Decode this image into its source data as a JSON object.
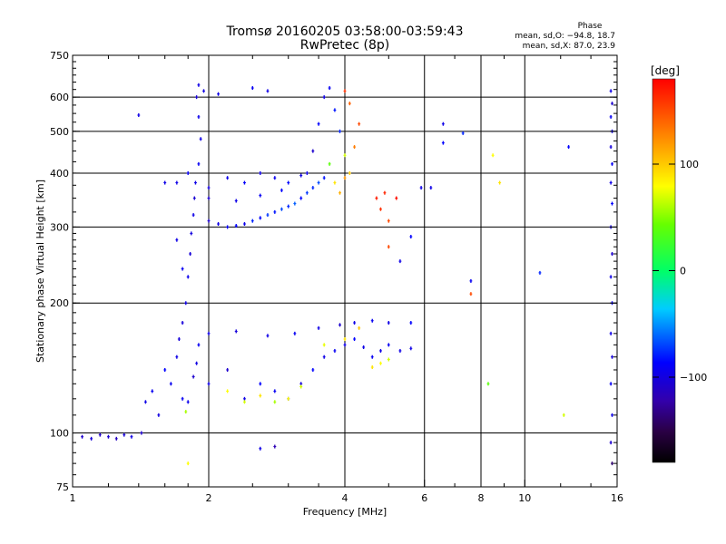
{
  "header": {
    "title_line1": "Tromsø 20160205 03:58:00-03:59:43",
    "title_line2": "RwPretec (8p)",
    "phase_label": "Phase",
    "stats_o": "mean, sd,O: −94.8, 18.7",
    "stats_x": "mean, sd,X:  87.0, 23.9"
  },
  "colorbar": {
    "unit_label": "[deg]",
    "tick_labels": [
      "100",
      "0",
      "−100"
    ],
    "tick_values": [
      100,
      0,
      -100
    ],
    "range": [
      -180,
      180
    ]
  },
  "chart_data": {
    "type": "scatter",
    "title": "Tromsø 20160205 03:58:00-03:59:43",
    "subtitle": "RwPretec (8p)",
    "xlabel": "Frequency [MHz]",
    "ylabel": "Stationary phase Virtual Height [km]",
    "x_scale": "log",
    "y_scale": "log",
    "xlim": [
      1,
      16
    ],
    "ylim": [
      75,
      750
    ],
    "x_ticks": [
      1,
      2,
      4,
      6,
      8,
      10,
      16
    ],
    "x_tick_labels": [
      "1",
      "2",
      "4",
      "6",
      "8",
      "10",
      "16"
    ],
    "y_ticks": [
      75,
      100,
      200,
      300,
      400,
      500,
      600,
      750
    ],
    "y_tick_labels": [
      "75",
      "100",
      "200",
      "300",
      "400",
      "500",
      "600",
      "750"
    ],
    "x_grid": [
      2,
      4,
      6,
      8,
      10
    ],
    "y_grid": [
      100,
      200,
      300,
      400,
      500,
      600
    ],
    "series": [
      {
        "values": [
          [
            1.05,
            98,
            -110
          ],
          [
            1.1,
            97,
            -105
          ],
          [
            1.15,
            99,
            -112
          ],
          [
            1.2,
            98,
            -108
          ],
          [
            1.25,
            97,
            -115
          ],
          [
            1.3,
            99,
            -106
          ],
          [
            1.35,
            98,
            -100
          ],
          [
            1.42,
            100,
            -110
          ],
          [
            1.45,
            118,
            -100
          ],
          [
            1.5,
            125,
            -95
          ],
          [
            1.55,
            110,
            -102
          ],
          [
            1.6,
            140,
            -90
          ],
          [
            1.65,
            130,
            -96
          ],
          [
            1.7,
            150,
            -100
          ],
          [
            1.72,
            165,
            -105
          ],
          [
            1.75,
            120,
            -95
          ],
          [
            1.78,
            112,
            60
          ],
          [
            1.8,
            118,
            -98
          ],
          [
            1.85,
            135,
            -110
          ],
          [
            1.88,
            145,
            -102
          ],
          [
            1.9,
            160,
            -95
          ],
          [
            1.75,
            180,
            -105
          ],
          [
            1.78,
            200,
            -100
          ],
          [
            1.8,
            230,
            -98
          ],
          [
            1.82,
            260,
            -106
          ],
          [
            1.83,
            290,
            -103
          ],
          [
            1.85,
            320,
            -100
          ],
          [
            1.86,
            350,
            -108
          ],
          [
            1.87,
            380,
            -100
          ],
          [
            1.9,
            420,
            -95
          ],
          [
            1.92,
            480,
            -100
          ],
          [
            1.9,
            540,
            -98
          ],
          [
            1.88,
            600,
            -106
          ],
          [
            1.9,
            640,
            -100
          ],
          [
            1.95,
            620,
            -102
          ],
          [
            2.0,
            310,
            -110
          ],
          [
            2.1,
            305,
            -100
          ],
          [
            2.2,
            300,
            -95
          ],
          [
            2.3,
            302,
            -90
          ],
          [
            2.4,
            305,
            -98
          ],
          [
            2.5,
            310,
            -80
          ],
          [
            2.6,
            315,
            -90
          ],
          [
            2.7,
            320,
            -75
          ],
          [
            2.8,
            325,
            -85
          ],
          [
            2.9,
            330,
            -70
          ],
          [
            3.0,
            335,
            -80
          ],
          [
            3.1,
            340,
            -65
          ],
          [
            3.2,
            350,
            -90
          ],
          [
            3.3,
            360,
            -75
          ],
          [
            3.4,
            370,
            -80
          ],
          [
            3.5,
            380,
            -70
          ],
          [
            3.6,
            390,
            -85
          ],
          [
            1.7,
            380,
            -100
          ],
          [
            1.8,
            400,
            -95
          ],
          [
            2.0,
            370,
            -105
          ],
          [
            2.2,
            390,
            -98
          ],
          [
            2.4,
            380,
            -92
          ],
          [
            2.6,
            400,
            -100
          ],
          [
            2.8,
            390,
            -96
          ],
          [
            3.0,
            380,
            -88
          ],
          [
            3.2,
            395,
            -102
          ],
          [
            2.0,
            350,
            -110
          ],
          [
            2.3,
            345,
            -100
          ],
          [
            2.6,
            355,
            -95
          ],
          [
            2.9,
            365,
            -90
          ],
          [
            3.3,
            400,
            -100
          ],
          [
            3.4,
            450,
            -110
          ],
          [
            3.5,
            520,
            -90
          ],
          [
            3.6,
            600,
            -100
          ],
          [
            3.7,
            630,
            -95
          ],
          [
            3.8,
            560,
            -85
          ],
          [
            3.9,
            500,
            -80
          ],
          [
            4.0,
            440,
            70
          ],
          [
            4.1,
            400,
            100
          ],
          [
            4.2,
            460,
            130
          ],
          [
            4.3,
            520,
            150
          ],
          [
            4.1,
            580,
            140
          ],
          [
            4.0,
            620,
            160
          ],
          [
            3.7,
            420,
            40
          ],
          [
            3.8,
            380,
            90
          ],
          [
            3.9,
            360,
            110
          ],
          [
            4.0,
            390,
            120
          ],
          [
            2.0,
            130,
            -100
          ],
          [
            2.2,
            140,
            -110
          ],
          [
            2.4,
            120,
            -100
          ],
          [
            2.6,
            130,
            -90
          ],
          [
            2.8,
            125,
            -95
          ],
          [
            3.0,
            120,
            -100
          ],
          [
            3.2,
            130,
            -105
          ],
          [
            3.4,
            140,
            -90
          ],
          [
            3.6,
            150,
            -100
          ],
          [
            3.8,
            155,
            -95
          ],
          [
            4.0,
            160,
            -100
          ],
          [
            4.2,
            165,
            -90
          ],
          [
            4.4,
            158,
            -100
          ],
          [
            4.6,
            150,
            -95
          ],
          [
            4.8,
            155,
            -100
          ],
          [
            5.0,
            160,
            -95
          ],
          [
            5.3,
            155,
            -100
          ],
          [
            5.6,
            157,
            -100
          ],
          [
            2.2,
            125,
            80
          ],
          [
            2.4,
            118,
            70
          ],
          [
            2.6,
            122,
            90
          ],
          [
            2.8,
            118,
            60
          ],
          [
            3.0,
            120,
            80
          ],
          [
            3.2,
            128,
            70
          ],
          [
            3.6,
            160,
            75
          ],
          [
            4.0,
            165,
            90
          ],
          [
            4.3,
            175,
            100
          ],
          [
            4.6,
            142,
            90
          ],
          [
            4.8,
            145,
            80
          ],
          [
            5.0,
            148,
            70
          ],
          [
            2.0,
            170,
            -100
          ],
          [
            2.3,
            172,
            -105
          ],
          [
            2.7,
            168,
            -100
          ],
          [
            3.1,
            170,
            -95
          ],
          [
            3.5,
            175,
            -100
          ],
          [
            3.9,
            178,
            -110
          ],
          [
            4.2,
            180,
            -100
          ],
          [
            4.6,
            182,
            -95
          ],
          [
            5.0,
            180,
            -100
          ],
          [
            5.6,
            180,
            -90
          ],
          [
            4.7,
            350,
            170
          ],
          [
            4.8,
            330,
            160
          ],
          [
            5.0,
            310,
            150
          ],
          [
            4.9,
            360,
            165
          ],
          [
            5.2,
            350,
            175
          ],
          [
            5.0,
            270,
            150
          ],
          [
            5.3,
            250,
            -100
          ],
          [
            5.6,
            285,
            -90
          ],
          [
            5.9,
            370,
            -100
          ],
          [
            6.6,
            520,
            -100
          ],
          [
            6.6,
            470,
            -90
          ],
          [
            6.2,
            370,
            -100
          ],
          [
            7.3,
            495,
            -80
          ],
          [
            7.6,
            225,
            -95
          ],
          [
            7.6,
            210,
            150
          ],
          [
            8.5,
            440,
            80
          ],
          [
            8.8,
            380,
            90
          ],
          [
            10.8,
            235,
            -80
          ],
          [
            12.5,
            460,
            -90
          ],
          [
            8.3,
            130,
            40
          ],
          [
            12.2,
            110,
            70
          ],
          [
            15.5,
            620,
            -100
          ],
          [
            15.6,
            580,
            -110
          ],
          [
            15.5,
            540,
            -95
          ],
          [
            15.6,
            500,
            -100
          ],
          [
            15.5,
            460,
            -105
          ],
          [
            15.6,
            420,
            -95
          ],
          [
            15.5,
            380,
            -100
          ],
          [
            15.6,
            340,
            -90
          ],
          [
            15.5,
            300,
            -100
          ],
          [
            15.6,
            260,
            -110
          ],
          [
            15.5,
            230,
            -100
          ],
          [
            15.6,
            200,
            -95
          ],
          [
            15.5,
            170,
            -100
          ],
          [
            15.6,
            150,
            -105
          ],
          [
            15.5,
            130,
            -95
          ],
          [
            15.6,
            110,
            -100
          ],
          [
            15.5,
            95,
            -110
          ],
          [
            15.6,
            85,
            -140
          ],
          [
            2.7,
            620,
            -100
          ],
          [
            2.5,
            630,
            -95
          ],
          [
            2.1,
            610,
            -100
          ],
          [
            1.4,
            545,
            -100
          ],
          [
            1.6,
            380,
            -100
          ],
          [
            1.7,
            280,
            -100
          ],
          [
            1.75,
            240,
            -95
          ],
          [
            2.6,
            92,
            -100
          ],
          [
            2.8,
            93,
            -120
          ],
          [
            1.8,
            85,
            80
          ]
        ]
      }
    ]
  }
}
